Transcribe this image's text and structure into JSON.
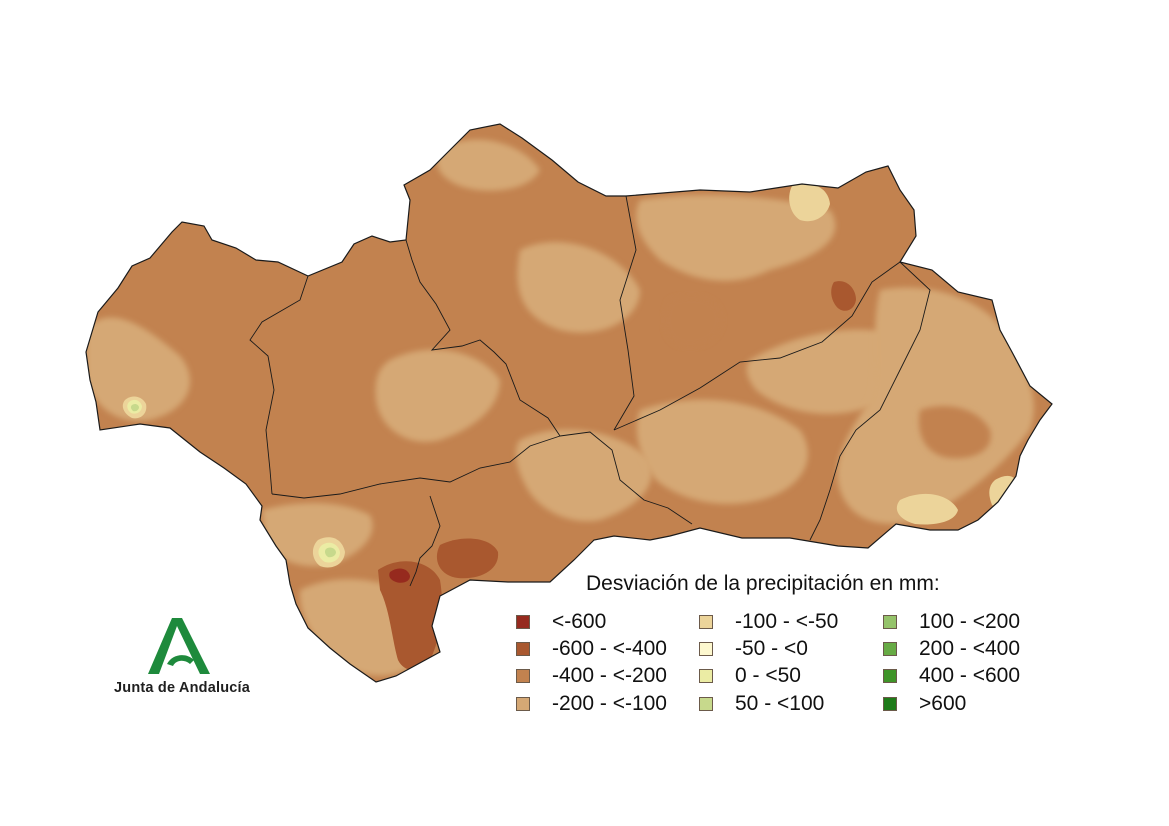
{
  "legend": {
    "title": "Desviación de la precipitación en mm:",
    "columns": [
      [
        {
          "label": "<-600",
          "color": "#962a1e"
        },
        {
          "label": "-600 - <-400",
          "color": "#a9582f"
        },
        {
          "label": "-400 - <-200",
          "color": "#c2824f"
        },
        {
          "label": "-200 - <-100",
          "color": "#d5a875"
        }
      ],
      [
        {
          "label": "-100 - <-50",
          "color": "#ecd49a"
        },
        {
          "label": "-50 - <0",
          "color": "#fdf8cf"
        },
        {
          "label": "0 - <50",
          "color": "#ebeca4"
        },
        {
          "label": "50 - <100",
          "color": "#c7d98c"
        }
      ],
      [
        {
          "label": "100 - <200",
          "color": "#95c36a"
        },
        {
          "label": "200 - <400",
          "color": "#67ab45"
        },
        {
          "label": "400 - <600",
          "color": "#3f9428"
        },
        {
          "label": ">600",
          "color": "#1e7a18"
        }
      ]
    ]
  },
  "logo": {
    "text": "Junta de Andalucía",
    "color": "#1e8a3c"
  },
  "map": {
    "region": "Andalucía",
    "base_color": "#c2824f",
    "border_color": "#1a1a1a"
  }
}
